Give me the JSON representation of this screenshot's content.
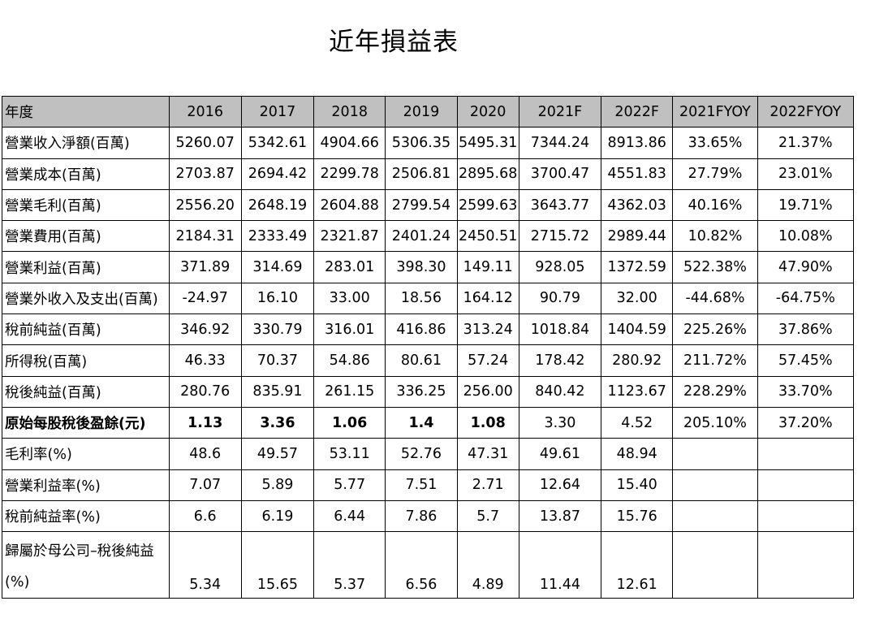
{
  "title": "近年損益表",
  "table": {
    "header": [
      "年度",
      "2016",
      "2017",
      "2018",
      "2019",
      "2020",
      "2021F",
      "2022F",
      "2021FYOY",
      "2022FYOY"
    ],
    "rows": [
      {
        "label": "營業收入淨額(百萬)",
        "values": [
          "5260.07",
          "5342.61",
          "4904.66",
          "5306.35",
          "5495.31",
          "7344.24",
          "8913.86",
          "33.65%",
          "21.37%"
        ]
      },
      {
        "label": "營業成本(百萬)",
        "values": [
          "2703.87",
          "2694.42",
          "2299.78",
          "2506.81",
          "2895.68",
          "3700.47",
          "4551.83",
          "27.79%",
          "23.01%"
        ]
      },
      {
        "label": "營業毛利(百萬)",
        "values": [
          "2556.20",
          "2648.19",
          "2604.88",
          "2799.54",
          "2599.63",
          "3643.77",
          "4362.03",
          "40.16%",
          "19.71%"
        ]
      },
      {
        "label": "營業費用(百萬)",
        "values": [
          "2184.31",
          "2333.49",
          "2321.87",
          "2401.24",
          "2450.51",
          "2715.72",
          "2989.44",
          "10.82%",
          "10.08%"
        ]
      },
      {
        "label": "營業利益(百萬)",
        "values": [
          "371.89",
          "314.69",
          "283.01",
          "398.30",
          "149.11",
          "928.05",
          "1372.59",
          "522.38%",
          "47.90%"
        ]
      },
      {
        "label": "營業外收入及支出(百萬)",
        "values": [
          "-24.97",
          "16.10",
          "33.00",
          "18.56",
          "164.12",
          "90.79",
          "32.00",
          "-44.68%",
          "-64.75%"
        ]
      },
      {
        "label": "稅前純益(百萬)",
        "values": [
          "346.92",
          "330.79",
          "316.01",
          "416.86",
          "313.24",
          "1018.84",
          "1404.59",
          "225.26%",
          "37.86%"
        ]
      },
      {
        "label": "所得稅(百萬)",
        "values": [
          "46.33",
          "70.37",
          "54.86",
          "80.61",
          "57.24",
          "178.42",
          "280.92",
          "211.72%",
          "57.45%"
        ]
      },
      {
        "label": "稅後純益(百萬)",
        "values": [
          "280.76",
          "835.91",
          "261.15",
          "336.25",
          "256.00",
          "840.42",
          "1123.67",
          "228.29%",
          "33.70%"
        ]
      },
      {
        "label": "原始每股稅後盈餘(元)",
        "values": [
          "1.13",
          "3.36",
          "1.06",
          "1.4",
          "1.08",
          "3.30",
          "4.52",
          "205.10%",
          "37.20%"
        ]
      },
      {
        "label": "毛利率(%)",
        "values": [
          "48.6",
          "49.57",
          "53.11",
          "52.76",
          "47.31",
          "49.61",
          "48.94",
          "",
          ""
        ]
      },
      {
        "label": "營業利益率(%)",
        "values": [
          "7.07",
          "5.89",
          "5.77",
          "7.51",
          "2.71",
          "12.64",
          "15.40",
          "",
          ""
        ]
      },
      {
        "label": "稅前純益率(%)",
        "values": [
          "6.6",
          "6.19",
          "6.44",
          "7.86",
          "5.7",
          "13.87",
          "15.76",
          "",
          ""
        ]
      },
      {
        "label": "歸屬於母公司–稅後純益(%)",
        "values": [
          "5.34",
          "15.65",
          "5.37",
          "6.56",
          "4.89",
          "11.44",
          "12.61",
          "",
          ""
        ]
      }
    ]
  }
}
